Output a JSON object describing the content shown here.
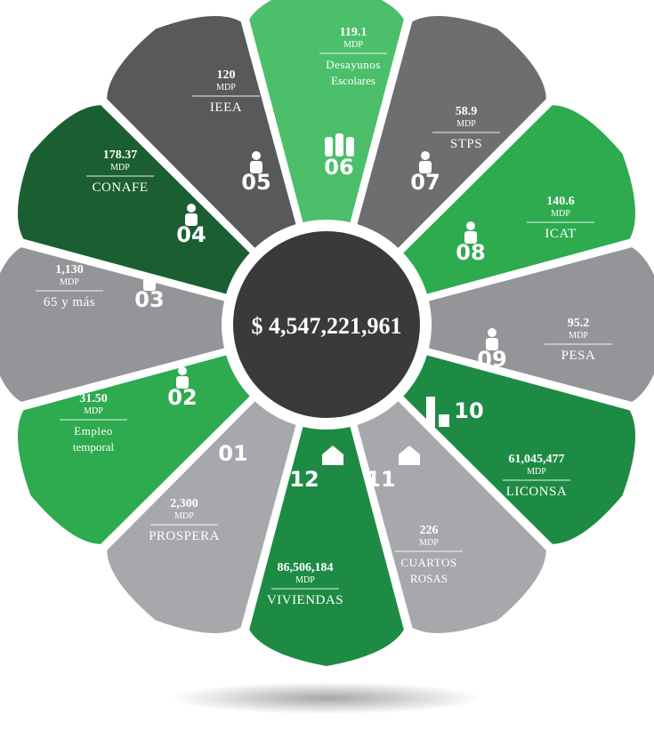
{
  "total": "$ 4,547,221,961",
  "colors": {
    "dark_gray": "#58595b",
    "mid_gray": "#6d6e70",
    "light_gray": "#939598",
    "pale_gray": "#a6a8ab",
    "dark_green": "#1b5e32",
    "green": "#2eaa4f",
    "light_green": "#4cbf6b",
    "mid_green": "#1e8b45",
    "center": "#3a3a3c"
  },
  "petals": [
    {
      "num": "01",
      "value": "2,300",
      "unit": "MDP",
      "name": "PROSPERA",
      "name2": "",
      "icon": "none"
    },
    {
      "num": "02",
      "value": "31.50",
      "unit": "MDP",
      "name": "Empleo",
      "name2": "temporal",
      "icon": "worker-icon"
    },
    {
      "num": "03",
      "value": "1,130",
      "unit": "MDP",
      "name": "65 y más",
      "name2": "",
      "icon": "elderly-couple-icon"
    },
    {
      "num": "04",
      "value": "178.37",
      "unit": "MDP",
      "name": "CONAFE",
      "name2": "",
      "icon": "teacher-board-icon"
    },
    {
      "num": "05",
      "value": "120",
      "unit": "MDP",
      "name": "IEEA",
      "name2": "",
      "icon": "student-reading-icon"
    },
    {
      "num": "06",
      "value": "119.1",
      "unit": "MDP",
      "name": "Desayunos",
      "name2": "Escolares",
      "icon": "milk-bottles-icon"
    },
    {
      "num": "07",
      "value": "58.9",
      "unit": "MDP",
      "name": "STPS",
      "name2": "",
      "icon": "person-arrows-icon"
    },
    {
      "num": "08",
      "value": "140.6",
      "unit": "MDP",
      "name": "ICAT",
      "name2": "",
      "icon": "person-arrows-icon"
    },
    {
      "num": "09",
      "value": "95.2",
      "unit": "MDP",
      "name": "PESA",
      "name2": "",
      "icon": "farm-cow-icon"
    },
    {
      "num": "10",
      "value": "61,045,477",
      "unit": "MDP",
      "name": "LICONSA",
      "name2": "",
      "icon": "milk-carton-icon"
    },
    {
      "num": "11",
      "value": "226",
      "unit": "MDP",
      "name": "CUARTOS",
      "name2": "ROSAS",
      "icon": "house-icon"
    },
    {
      "num": "12",
      "value": "86,506,184",
      "unit": "MDP",
      "name": "VIVIENDAS",
      "name2": "",
      "icon": "house-icon"
    }
  ]
}
